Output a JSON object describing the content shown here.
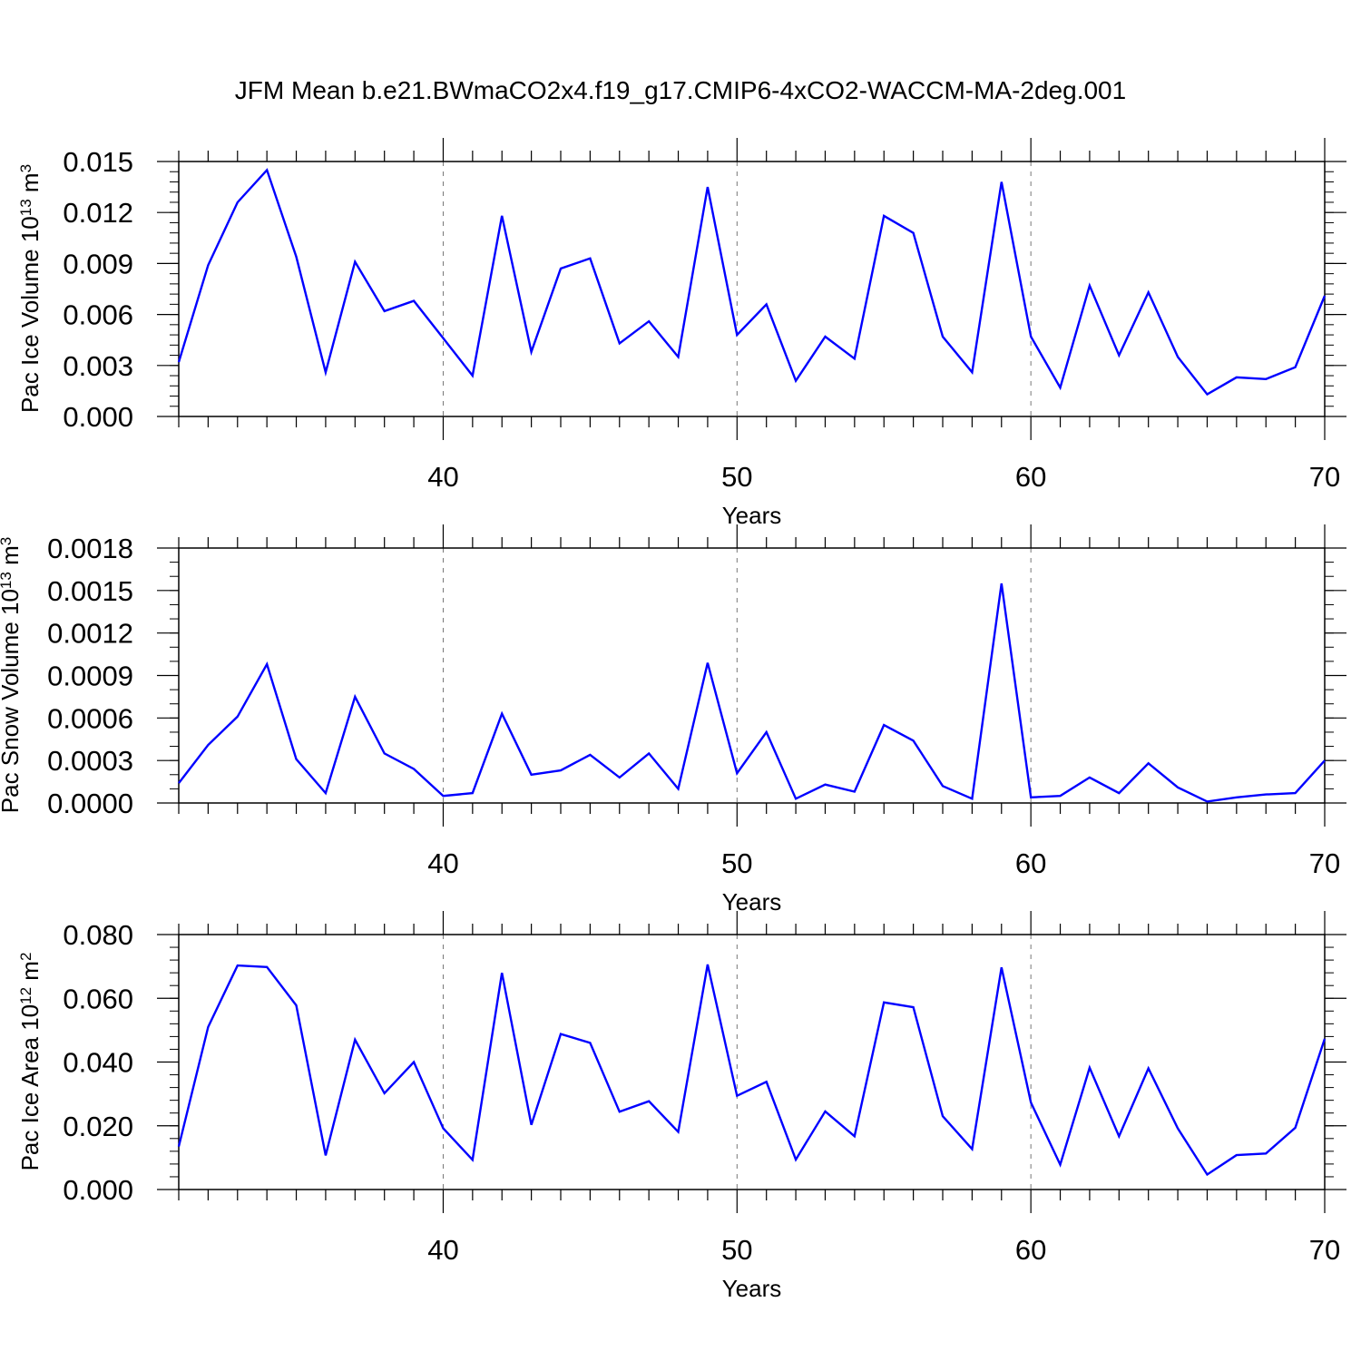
{
  "figure": {
    "title": "JFM Mean b.e21.BWmaCO2x4.f19_g17.CMIP6-4xCO2-WACCM-MA-2deg.001"
  },
  "colors": {
    "line": "#0000ff",
    "axis": "#000000",
    "grid": "#777777"
  },
  "chart_data": [
    {
      "type": "line",
      "title": "",
      "xlabel": "Years",
      "ylabel": {
        "text": "Pac Ice Volume 10",
        "sup": "13",
        "unit": " m",
        "unit_sup": "3"
      },
      "xlim": [
        31,
        70
      ],
      "ylim": [
        0,
        0.015
      ],
      "x_major_ticks": [
        40,
        50,
        60,
        70
      ],
      "x_tick_labels": [
        "40",
        "50",
        "60",
        "70"
      ],
      "y_major_ticks": [
        0,
        0.003,
        0.006,
        0.009,
        0.012,
        0.015
      ],
      "y_tick_labels": [
        "0.000",
        "0.003",
        "0.006",
        "0.009",
        "0.012",
        "0.015"
      ],
      "y_minor_step": 0.0006,
      "vertical_dashed_grid": [
        40,
        50,
        60
      ],
      "series": [
        {
          "name": "Pac Ice Volume",
          "x": [
            31,
            32,
            33,
            34,
            35,
            36,
            37,
            38,
            39,
            40,
            41,
            42,
            43,
            44,
            45,
            46,
            47,
            48,
            49,
            50,
            51,
            52,
            53,
            54,
            55,
            56,
            57,
            58,
            59,
            60,
            61,
            62,
            63,
            64,
            65,
            66,
            67,
            68,
            69,
            70
          ],
          "values": [
            0.0032,
            0.0089,
            0.0126,
            0.0145,
            0.0094,
            0.0026,
            0.0091,
            0.0062,
            0.0068,
            0.0046,
            0.0024,
            0.0118,
            0.0038,
            0.0087,
            0.0093,
            0.0043,
            0.0056,
            0.0035,
            0.0135,
            0.0048,
            0.0066,
            0.0021,
            0.0047,
            0.0034,
            0.0118,
            0.0108,
            0.0047,
            0.0026,
            0.0138,
            0.0047,
            0.0017,
            0.0077,
            0.0036,
            0.0073,
            0.0035,
            0.0013,
            0.0023,
            0.0022,
            0.0029,
            0.0071
          ]
        }
      ]
    },
    {
      "type": "line",
      "title": "",
      "xlabel": "Years",
      "ylabel": {
        "text": "Pac Snow Volume 10",
        "sup": "13",
        "unit": " m",
        "unit_sup": "3"
      },
      "xlim": [
        31,
        70
      ],
      "ylim": [
        0,
        0.0018
      ],
      "x_major_ticks": [
        40,
        50,
        60,
        70
      ],
      "x_tick_labels": [
        "40",
        "50",
        "60",
        "70"
      ],
      "y_major_ticks": [
        0,
        0.0003,
        0.0006,
        0.0009,
        0.0012,
        0.0015,
        0.0018
      ],
      "y_tick_labels": [
        "0.0000",
        "0.0003",
        "0.0006",
        "0.0009",
        "0.0012",
        "0.0015",
        "0.0018"
      ],
      "y_minor_step": 0.0001,
      "vertical_dashed_grid": [
        40,
        50,
        60
      ],
      "series": [
        {
          "name": "Pac Snow Volume",
          "x": [
            31,
            32,
            33,
            34,
            35,
            36,
            37,
            38,
            39,
            40,
            41,
            42,
            43,
            44,
            45,
            46,
            47,
            48,
            49,
            50,
            51,
            52,
            53,
            54,
            55,
            56,
            57,
            58,
            59,
            60,
            61,
            62,
            63,
            64,
            65,
            66,
            67,
            68,
            69,
            70
          ],
          "values": [
            0.00014,
            0.00041,
            0.00061,
            0.00098,
            0.00031,
            7e-05,
            0.00075,
            0.00035,
            0.00024,
            5e-05,
            7e-05,
            0.00063,
            0.0002,
            0.00023,
            0.00034,
            0.00018,
            0.00035,
            0.0001,
            0.00099,
            0.00021,
            0.0005,
            3e-05,
            0.00013,
            8e-05,
            0.00055,
            0.00044,
            0.00012,
            3e-05,
            0.00155,
            4e-05,
            5e-05,
            0.00018,
            7e-05,
            0.00028,
            0.00011,
            1e-05,
            4e-05,
            6e-05,
            7e-05,
            0.0003
          ]
        }
      ]
    },
    {
      "type": "line",
      "title": "",
      "xlabel": "Years",
      "ylabel": {
        "text": "Pac Ice Area 10",
        "sup": "12",
        "unit": " m",
        "unit_sup": "2"
      },
      "xlim": [
        31,
        70
      ],
      "ylim": [
        0,
        0.08
      ],
      "x_major_ticks": [
        40,
        50,
        60,
        70
      ],
      "x_tick_labels": [
        "40",
        "50",
        "60",
        "70"
      ],
      "y_major_ticks": [
        0,
        0.02,
        0.04,
        0.06,
        0.08
      ],
      "y_tick_labels": [
        "0.000",
        "0.020",
        "0.040",
        "0.060",
        "0.080"
      ],
      "y_minor_step": 0.004,
      "vertical_dashed_grid": [
        40,
        50,
        60
      ],
      "series": [
        {
          "name": "Pac Ice Area",
          "x": [
            31,
            32,
            33,
            34,
            35,
            36,
            37,
            38,
            39,
            40,
            41,
            42,
            43,
            44,
            45,
            46,
            47,
            48,
            49,
            50,
            51,
            52,
            53,
            54,
            55,
            56,
            57,
            58,
            59,
            60,
            61,
            62,
            63,
            64,
            65,
            66,
            67,
            68,
            69,
            70
          ],
          "values": [
            0.0135,
            0.051,
            0.0703,
            0.0698,
            0.0578,
            0.0107,
            0.047,
            0.0302,
            0.04,
            0.0192,
            0.0093,
            0.068,
            0.0203,
            0.0488,
            0.046,
            0.0244,
            0.0277,
            0.0181,
            0.0706,
            0.0294,
            0.0338,
            0.0094,
            0.0245,
            0.0167,
            0.0587,
            0.0572,
            0.023,
            0.0127,
            0.0697,
            0.0273,
            0.0078,
            0.0382,
            0.0167,
            0.038,
            0.0192,
            0.0047,
            0.0108,
            0.0113,
            0.0194,
            0.0473
          ]
        }
      ]
    }
  ]
}
